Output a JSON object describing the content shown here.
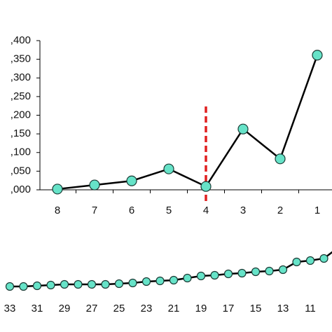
{
  "chart_data": [
    {
      "type": "line",
      "categories": [
        "8",
        "7",
        "6",
        "5",
        "4",
        "3",
        "2",
        "1"
      ],
      "series": [
        {
          "color": "#000000",
          "marker_color": "#66e3c8",
          "values": [
            1002,
            1013,
            1024,
            1056,
            1009,
            1163,
            1083,
            1361
          ]
        }
      ],
      "ylim": [
        1000,
        1400
      ],
      "yticks": [
        {
          "value": 1000,
          "label": ",000"
        },
        {
          "value": 1050,
          "label": ",050"
        },
        {
          "value": 1100,
          "label": ",100"
        },
        {
          "value": 1150,
          "label": ",150"
        },
        {
          "value": 1200,
          "label": ",200"
        },
        {
          "value": 1250,
          "label": ",250"
        },
        {
          "value": 1300,
          "label": ",300"
        },
        {
          "value": 1350,
          "label": ",350"
        },
        {
          "value": 1400,
          "label": ",400"
        }
      ],
      "reference_line": {
        "category": "4",
        "color": "#e02020"
      }
    },
    {
      "type": "line",
      "categories": [
        "33",
        null,
        "31",
        null,
        "29",
        null,
        "27",
        null,
        "25",
        null,
        "23",
        null,
        "21",
        null,
        "19",
        null,
        "17",
        null,
        "15",
        null,
        "13",
        null,
        "11",
        null,
        null
      ],
      "series": [
        {
          "color": "#000000",
          "marker_color": "#66e3c8",
          "values": [
            11,
            11,
            12,
            13,
            14,
            14,
            14,
            14,
            15,
            16,
            18,
            19,
            20,
            23,
            26,
            27,
            29,
            30,
            32,
            33,
            35,
            46,
            48,
            51,
            66
          ]
        }
      ],
      "ylim": [
        0,
        100
      ]
    }
  ]
}
